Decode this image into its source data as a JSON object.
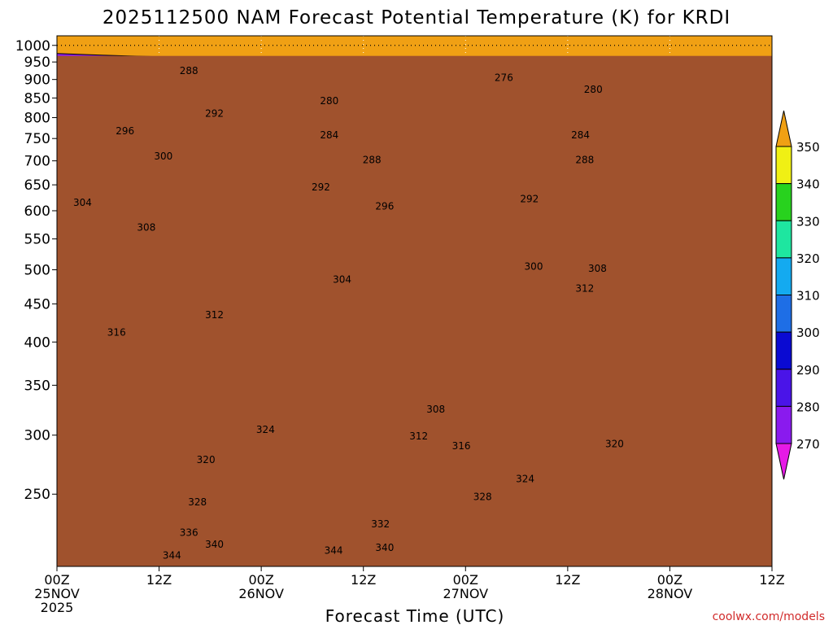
{
  "chart_data": {
    "type": "heatmap",
    "title": "2025112500 NAM Forecast Potential Temperature (K) for KRDI",
    "xlabel": "Forecast Time (UTC)",
    "ylabel": "Pressure (hPa)",
    "x_hours_range": [
      0,
      84
    ],
    "y_pressure_range": [
      1030,
      200
    ],
    "y_ticks": [
      250,
      300,
      350,
      400,
      450,
      500,
      550,
      600,
      650,
      700,
      750,
      800,
      850,
      900,
      950,
      1000
    ],
    "x_ticks": [
      {
        "hour": 0,
        "lines": [
          "00Z",
          "25NOV",
          "2025"
        ]
      },
      {
        "hour": 12,
        "lines": [
          "12Z"
        ]
      },
      {
        "hour": 24,
        "lines": [
          "00Z",
          "26NOV"
        ]
      },
      {
        "hour": 36,
        "lines": [
          "12Z"
        ]
      },
      {
        "hour": 48,
        "lines": [
          "00Z",
          "27NOV"
        ]
      },
      {
        "hour": 60,
        "lines": [
          "12Z"
        ]
      },
      {
        "hour": 72,
        "lines": [
          "00Z",
          "28NOV"
        ]
      },
      {
        "hour": 84,
        "lines": [
          "12Z"
        ]
      }
    ],
    "colorbar": {
      "levels": [
        270,
        280,
        290,
        300,
        310,
        320,
        330,
        340,
        350
      ],
      "colors": [
        "#e61ae6",
        "#8a1aee",
        "#4a14e8",
        "#0a0ad2",
        "#1e6ee6",
        "#14aaf0",
        "#1ee6a0",
        "#28d21e",
        "#f0f014",
        "#f0a014"
      ]
    },
    "isentropes": [
      {
        "theta": 276,
        "pressures": [
          975,
          970,
          966,
          962,
          960,
          962,
          948,
          930,
          930,
          932,
          930,
          928,
          930,
          935,
          940,
          942
        ]
      },
      {
        "theta": 280,
        "pressures": [
          948,
          940,
          935,
          928,
          920,
          905,
          870,
          840,
          830,
          828,
          826,
          828,
          835,
          840,
          848,
          855
        ]
      },
      {
        "theta": 284,
        "pressures": [
          915,
          905,
          898,
          890,
          880,
          840,
          800,
          790,
          778,
          772,
          765,
          762,
          768,
          772,
          780,
          785
        ]
      },
      {
        "theta": 288,
        "pressures": [
          880,
          860,
          860,
          858,
          850,
          775,
          725,
          715,
          705,
          700,
          695,
          694,
          698,
          705,
          712,
          720
        ]
      },
      {
        "theta": 292,
        "pressures": [
          840,
          800,
          810,
          812,
          780,
          700,
          640,
          650,
          648,
          642,
          638,
          635,
          640,
          650,
          660,
          668
        ]
      },
      {
        "theta": 296,
        "pressures": [
          770,
          750,
          762,
          760,
          715,
          610,
          560,
          590,
          600,
          590,
          580,
          575,
          585,
          600,
          612,
          620
        ]
      },
      {
        "theta": 300,
        "pressures": [
          720,
          715,
          722,
          710,
          640,
          530,
          495,
          540,
          560,
          545,
          520,
          510,
          530,
          560,
          570,
          578
        ]
      },
      {
        "theta": 304,
        "pressures": [
          645,
          660,
          650,
          630,
          560,
          450,
          430,
          470,
          480,
          450,
          440,
          445,
          465,
          500,
          520,
          530
        ]
      },
      {
        "theta": 308,
        "pressures": [
          580,
          600,
          585,
          555,
          505,
          420,
          395,
          420,
          380,
          330,
          365,
          395,
          420,
          470,
          490,
          500
        ]
      },
      {
        "theta": 312,
        "pressures": [
          470,
          510,
          500,
          465,
          440,
          390,
          380,
          405,
          340,
          305,
          325,
          355,
          380,
          440,
          455,
          470
        ]
      },
      {
        "theta": 316,
        "pressures": [
          380,
          420,
          410,
          365,
          380,
          345,
          350,
          375,
          305,
          285,
          295,
          315,
          335,
          390,
          405,
          420
        ]
      },
      {
        "theta": 320,
        "pressures": [
          310,
          335,
          320,
          295,
          300,
          300,
          320,
          340,
          285,
          270,
          275,
          285,
          300,
          300,
          310,
          315
        ]
      },
      {
        "theta": 324,
        "pressures": [
          280,
          305,
          290,
          265,
          270,
          280,
          295,
          305,
          265,
          255,
          255,
          262,
          270,
          265,
          270,
          280
        ]
      },
      {
        "theta": 328,
        "pressures": [
          255,
          275,
          262,
          245,
          245,
          258,
          270,
          278,
          248,
          240,
          238,
          240,
          248,
          240,
          245,
          250
        ]
      },
      {
        "theta": 332,
        "pressures": [
          238,
          252,
          242,
          228,
          228,
          240,
          252,
          258,
          234,
          226,
          224,
          226,
          230,
          222,
          226,
          230
        ]
      },
      {
        "theta": 336,
        "pressures": [
          222,
          232,
          226,
          214,
          214,
          224,
          236,
          240,
          220,
          214,
          212,
          212,
          216,
          208,
          210,
          214
        ]
      },
      {
        "theta": 340,
        "pressures": [
          210,
          217,
          212,
          204,
          204,
          212,
          222,
          226,
          210,
          204,
          202,
          200,
          203,
          197,
          199,
          202
        ]
      },
      {
        "theta": 344,
        "pressures": [
          201,
          205,
          203,
          198,
          197,
          203,
          210,
          214,
          201,
          197,
          195,
          193,
          195,
          190,
          192,
          195
        ]
      }
    ],
    "contour_labels": [
      {
        "text": "344",
        "hour": 13.5,
        "p": 207
      },
      {
        "text": "340",
        "hour": 18.5,
        "p": 214
      },
      {
        "text": "336",
        "hour": 15.5,
        "p": 222
      },
      {
        "text": "328",
        "hour": 16.5,
        "p": 244
      },
      {
        "text": "320",
        "hour": 17.5,
        "p": 278
      },
      {
        "text": "324",
        "hour": 24.5,
        "p": 305
      },
      {
        "text": "344",
        "hour": 32.5,
        "p": 210
      },
      {
        "text": "340",
        "hour": 38.5,
        "p": 212
      },
      {
        "text": "332",
        "hour": 38,
        "p": 228
      },
      {
        "text": "328",
        "hour": 50,
        "p": 248
      },
      {
        "text": "324",
        "hour": 55,
        "p": 262
      },
      {
        "text": "316",
        "hour": 47.5,
        "p": 290
      },
      {
        "text": "312",
        "hour": 42.5,
        "p": 299
      },
      {
        "text": "308",
        "hour": 44.5,
        "p": 325
      },
      {
        "text": "320",
        "hour": 65.5,
        "p": 292
      },
      {
        "text": "316",
        "hour": 7,
        "p": 412
      },
      {
        "text": "312",
        "hour": 18.5,
        "p": 435
      },
      {
        "text": "304",
        "hour": 33.5,
        "p": 485
      },
      {
        "text": "300",
        "hour": 56,
        "p": 505
      },
      {
        "text": "312",
        "hour": 62,
        "p": 472
      },
      {
        "text": "308",
        "hour": 63.5,
        "p": 502
      },
      {
        "text": "308",
        "hour": 10.5,
        "p": 570
      },
      {
        "text": "304",
        "hour": 3,
        "p": 615
      },
      {
        "text": "296",
        "hour": 38.5,
        "p": 608
      },
      {
        "text": "292",
        "hour": 31,
        "p": 645
      },
      {
        "text": "292",
        "hour": 55.5,
        "p": 622
      },
      {
        "text": "300",
        "hour": 12.5,
        "p": 710
      },
      {
        "text": "296",
        "hour": 8,
        "p": 768
      },
      {
        "text": "292",
        "hour": 18.5,
        "p": 810
      },
      {
        "text": "288",
        "hour": 37,
        "p": 702
      },
      {
        "text": "288",
        "hour": 62,
        "p": 702
      },
      {
        "text": "284",
        "hour": 32,
        "p": 758
      },
      {
        "text": "284",
        "hour": 61.5,
        "p": 758
      },
      {
        "text": "280",
        "hour": 32,
        "p": 842
      },
      {
        "text": "280",
        "hour": 63,
        "p": 872
      },
      {
        "text": "288",
        "hour": 15.5,
        "p": 925
      },
      {
        "text": "276",
        "hour": 52.5,
        "p": 905
      }
    ],
    "terrain_surface_pressure": 968,
    "terrain_color": "#a0522d"
  },
  "credit": "coolwx.com/models"
}
